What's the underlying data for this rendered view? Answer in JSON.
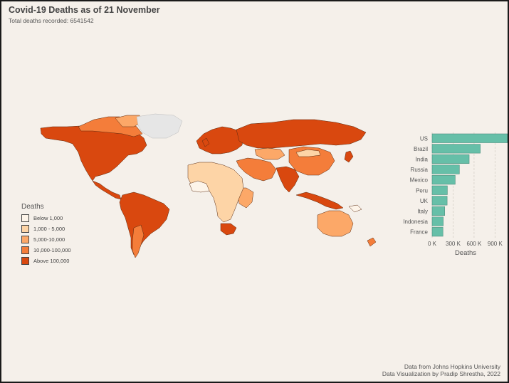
{
  "header": {
    "title": "Covid-19 Deaths as of 21 November",
    "subtitle": "Total deaths recorded: 6541542"
  },
  "legend": {
    "title": "Deaths",
    "items": [
      {
        "label": "Below 1,000",
        "color": "#fdf4e9"
      },
      {
        "label": "1,000 - 5,000",
        "color": "#fdd4a6"
      },
      {
        "label": "5,000-10,000",
        "color": "#fca868"
      },
      {
        "label": "10,000-100,000",
        "color": "#f47d3a"
      },
      {
        "label": "Above 100,000",
        "color": "#d9480f"
      }
    ],
    "no_data_color": "#e6e6e6"
  },
  "chart_data": {
    "type": "bar",
    "orientation": "horizontal",
    "categories": [
      "US",
      "Brazil",
      "India",
      "Russia",
      "Mexico",
      "Peru",
      "UK",
      "Italy",
      "Indonesia",
      "France"
    ],
    "values": [
      1078000,
      689000,
      530000,
      390000,
      330000,
      218000,
      215000,
      180000,
      159000,
      155000
    ],
    "xlabel": "Deaths",
    "xlim": [
      0,
      1100000
    ],
    "xticks": [
      0,
      300000,
      600000,
      900000
    ],
    "xtick_labels": [
      "0 K",
      "300 K",
      "600 K",
      "900 K"
    ],
    "bar_color": "#66bfa8",
    "grid": "vertical dashed"
  },
  "footer": {
    "line1": "Data from Johns Hopkins University",
    "line2": "Data Visualization by Pradip Shrestha, 2022"
  }
}
